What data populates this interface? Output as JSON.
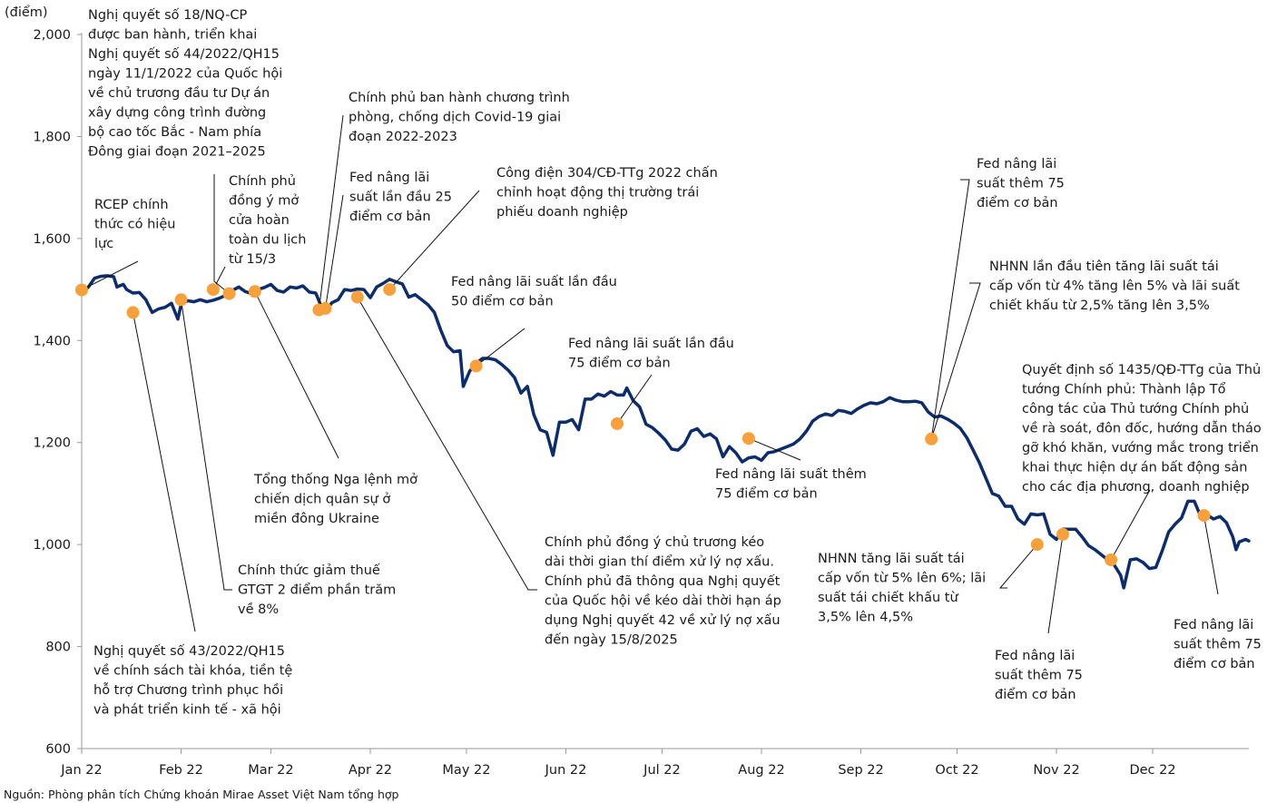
{
  "chart_data": {
    "type": "line",
    "unit_label": "(điểm)",
    "ylim": [
      600,
      2000
    ],
    "y_ticks": [
      600,
      800,
      1000,
      1200,
      1400,
      1600,
      1800,
      2000
    ],
    "y_tick_labels": [
      "600",
      "800",
      "1,000",
      "1,200",
      "1,400",
      "1,600",
      "1,800",
      "2,000"
    ],
    "x_range_days": [
      0,
      364
    ],
    "x_ticks": [
      {
        "day": 0,
        "label": "Jan 22"
      },
      {
        "day": 31,
        "label": "Feb 22"
      },
      {
        "day": 59,
        "label": "Mar 22"
      },
      {
        "day": 90,
        "label": "Apr 22"
      },
      {
        "day": 120,
        "label": "May 22"
      },
      {
        "day": 151,
        "label": "Jun 22"
      },
      {
        "day": 181,
        "label": "Jul 22"
      },
      {
        "day": 212,
        "label": "Aug 22"
      },
      {
        "day": 243,
        "label": "Sep 22"
      },
      {
        "day": 273,
        "label": "Oct 22"
      },
      {
        "day": 304,
        "label": "Nov 22"
      },
      {
        "day": 334,
        "label": "Dec 22"
      }
    ],
    "series": [
      {
        "color": "#0c2d6b",
        "points": [
          [
            0,
            1499
          ],
          [
            2,
            1504
          ],
          [
            4,
            1522
          ],
          [
            6,
            1526
          ],
          [
            8,
            1527
          ],
          [
            10,
            1525
          ],
          [
            11,
            1505
          ],
          [
            13,
            1510
          ],
          [
            14,
            1500
          ],
          [
            16,
            1493
          ],
          [
            18,
            1494
          ],
          [
            20,
            1480
          ],
          [
            22,
            1455
          ],
          [
            24,
            1462
          ],
          [
            26,
            1465
          ],
          [
            28,
            1473
          ],
          [
            30,
            1442
          ],
          [
            31,
            1470
          ],
          [
            33,
            1478
          ],
          [
            35,
            1476
          ],
          [
            37,
            1480
          ],
          [
            39,
            1476
          ],
          [
            41,
            1479
          ],
          [
            43,
            1483
          ],
          [
            45,
            1489
          ],
          [
            47,
            1498
          ],
          [
            49,
            1505
          ],
          [
            51,
            1496
          ],
          [
            53,
            1492
          ],
          [
            55,
            1500
          ],
          [
            57,
            1504
          ],
          [
            59,
            1510
          ],
          [
            61,
            1498
          ],
          [
            63,
            1495
          ],
          [
            65,
            1505
          ],
          [
            67,
            1503
          ],
          [
            69,
            1507
          ],
          [
            71,
            1495
          ],
          [
            73,
            1493
          ],
          [
            75,
            1462
          ],
          [
            77,
            1465
          ],
          [
            78,
            1474
          ],
          [
            80,
            1480
          ],
          [
            82,
            1500
          ],
          [
            84,
            1498
          ],
          [
            86,
            1501
          ],
          [
            88,
            1500
          ],
          [
            90,
            1484
          ],
          [
            92,
            1505
          ],
          [
            94,
            1512
          ],
          [
            96,
            1520
          ],
          [
            98,
            1515
          ],
          [
            100,
            1511
          ],
          [
            102,
            1485
          ],
          [
            104,
            1490
          ],
          [
            106,
            1480
          ],
          [
            108,
            1470
          ],
          [
            110,
            1455
          ],
          [
            112,
            1420
          ],
          [
            114,
            1390
          ],
          [
            116,
            1378
          ],
          [
            118,
            1380
          ],
          [
            119,
            1310
          ],
          [
            121,
            1340
          ],
          [
            123,
            1355
          ],
          [
            125,
            1365
          ],
          [
            127,
            1365
          ],
          [
            129,
            1362
          ],
          [
            131,
            1353
          ],
          [
            133,
            1342
          ],
          [
            135,
            1327
          ],
          [
            137,
            1297
          ],
          [
            139,
            1310
          ],
          [
            141,
            1255
          ],
          [
            143,
            1225
          ],
          [
            145,
            1220
          ],
          [
            147,
            1175
          ],
          [
            149,
            1240
          ],
          [
            151,
            1240
          ],
          [
            153,
            1245
          ],
          [
            155,
            1225
          ],
          [
            157,
            1285
          ],
          [
            159,
            1285
          ],
          [
            161,
            1295
          ],
          [
            163,
            1291
          ],
          [
            165,
            1300
          ],
          [
            167,
            1293
          ],
          [
            169,
            1293
          ],
          [
            170,
            1307
          ],
          [
            172,
            1282
          ],
          [
            174,
            1270
          ],
          [
            176,
            1236
          ],
          [
            178,
            1229
          ],
          [
            180,
            1218
          ],
          [
            182,
            1205
          ],
          [
            184,
            1187
          ],
          [
            186,
            1185
          ],
          [
            188,
            1197
          ],
          [
            190,
            1222
          ],
          [
            192,
            1227
          ],
          [
            194,
            1212
          ],
          [
            196,
            1217
          ],
          [
            198,
            1207
          ],
          [
            200,
            1172
          ],
          [
            202,
            1192
          ],
          [
            204,
            1180
          ],
          [
            206,
            1162
          ],
          [
            208,
            1170
          ],
          [
            210,
            1172
          ],
          [
            212,
            1165
          ],
          [
            214,
            1180
          ],
          [
            216,
            1182
          ],
          [
            218,
            1187
          ],
          [
            220,
            1192
          ],
          [
            222,
            1197
          ],
          [
            224,
            1207
          ],
          [
            226,
            1222
          ],
          [
            228,
            1242
          ],
          [
            230,
            1251
          ],
          [
            232,
            1256
          ],
          [
            234,
            1253
          ],
          [
            236,
            1263
          ],
          [
            238,
            1261
          ],
          [
            240,
            1257
          ],
          [
            242,
            1266
          ],
          [
            244,
            1273
          ],
          [
            246,
            1278
          ],
          [
            248,
            1276
          ],
          [
            250,
            1280
          ],
          [
            252,
            1288
          ],
          [
            254,
            1283
          ],
          [
            256,
            1280
          ],
          [
            258,
            1280
          ],
          [
            260,
            1281
          ],
          [
            262,
            1278
          ],
          [
            264,
            1260
          ],
          [
            266,
            1250
          ],
          [
            268,
            1252
          ],
          [
            270,
            1246
          ],
          [
            272,
            1238
          ],
          [
            274,
            1228
          ],
          [
            276,
            1210
          ],
          [
            278,
            1185
          ],
          [
            280,
            1160
          ],
          [
            282,
            1130
          ],
          [
            284,
            1100
          ],
          [
            286,
            1095
          ],
          [
            288,
            1075
          ],
          [
            290,
            1075
          ],
          [
            292,
            1050
          ],
          [
            294,
            1040
          ],
          [
            296,
            1060
          ],
          [
            298,
            1058
          ],
          [
            300,
            1060
          ],
          [
            302,
            1020
          ],
          [
            304,
            1010
          ],
          [
            306,
            1030
          ],
          [
            308,
            1030
          ],
          [
            310,
            1030
          ],
          [
            312,
            1015
          ],
          [
            314,
            998
          ],
          [
            316,
            990
          ],
          [
            318,
            980
          ],
          [
            320,
            970
          ],
          [
            322,
            960
          ],
          [
            324,
            940
          ],
          [
            325,
            915
          ],
          [
            327,
            970
          ],
          [
            329,
            972
          ],
          [
            331,
            965
          ],
          [
            333,
            953
          ],
          [
            335,
            955
          ],
          [
            337,
            988
          ],
          [
            339,
            1025
          ],
          [
            341,
            1040
          ],
          [
            343,
            1052
          ],
          [
            345,
            1085
          ],
          [
            347,
            1085
          ],
          [
            349,
            1055
          ],
          [
            351,
            1058
          ],
          [
            353,
            1050
          ],
          [
            355,
            1055
          ],
          [
            357,
            1043
          ],
          [
            359,
            1015
          ],
          [
            360,
            990
          ],
          [
            361,
            1005
          ],
          [
            363,
            1010
          ],
          [
            364,
            1007
          ]
        ]
      }
    ],
    "markers": [
      {
        "day": 0,
        "value": 1499
      },
      {
        "day": 16,
        "value": 1455
      },
      {
        "day": 31,
        "value": 1480
      },
      {
        "day": 41,
        "value": 1500
      },
      {
        "day": 46,
        "value": 1492
      },
      {
        "day": 54,
        "value": 1496
      },
      {
        "day": 74,
        "value": 1460
      },
      {
        "day": 76,
        "value": 1463
      },
      {
        "day": 86,
        "value": 1485
      },
      {
        "day": 96,
        "value": 1500
      },
      {
        "day": 123,
        "value": 1350
      },
      {
        "day": 167,
        "value": 1237
      },
      {
        "day": 208,
        "value": 1208
      },
      {
        "day": 265,
        "value": 1207
      },
      {
        "day": 298,
        "value": 1000
      },
      {
        "day": 306,
        "value": 1020
      },
      {
        "day": 321,
        "value": 970
      },
      {
        "day": 350,
        "value": 1057
      }
    ],
    "marker_color": "#f7a03c",
    "annotations": [
      {
        "lines": [
          "Nghị quyết số 18/NQ-CP",
          "được ban hành, triển khai",
          "Nghị quyết số 44/2022/QH15",
          "ngày 11/1/2022 của Quốc hội",
          "về chủ trương đầu tư Dự án",
          "xây dựng công trình đường",
          "bộ cao tốc Bắc - Nam phía",
          "Đông giai đoạn 2021–2025"
        ]
      },
      {
        "lines": [
          "RCEP chính",
          "thức có hiệu",
          "lực"
        ]
      },
      {
        "lines": [
          "Chính phủ",
          "đồng ý mở",
          "cửa hoàn",
          "toàn du lịch",
          "từ 15/3"
        ]
      },
      {
        "lines": [
          "Chính phủ ban hành chương trình",
          "phòng, chống dịch Covid-19 giai",
          "đoạn 2022-2023"
        ]
      },
      {
        "lines": [
          "Fed nâng lãi",
          "suất lần đầu 25",
          "điểm cơ bản"
        ]
      },
      {
        "lines": [
          "Công điện 304/CĐ-TTg 2022 chấn",
          "chỉnh hoạt động thị trường trái",
          "phiếu doanh nghiệp"
        ]
      },
      {
        "lines": [
          "Fed nâng lãi suất lần đầu",
          "50 điểm cơ bản"
        ]
      },
      {
        "lines": [
          "Fed nâng lãi suất lần đầu",
          "75 điểm cơ bản"
        ]
      },
      {
        "lines": [
          "Fed nâng lãi",
          "suất thêm 75",
          "điểm cơ bản"
        ]
      },
      {
        "lines": [
          "NHNN lần đầu tiên tăng lãi suất tái",
          "cấp vốn từ 4% tăng lên 5% và lãi suất",
          "chiết khấu từ 2,5% tăng lên 3,5%"
        ]
      },
      {
        "lines": [
          "Quyết định số 1435/QĐ-TTg của Thủ",
          "tướng Chính phủ: Thành lập Tổ",
          "công tác của Thủ tướng Chính phủ",
          "về rà soát, đôn đốc, hướng dẫn tháo",
          "gỡ khó khăn, vướng mắc trong triển",
          "khai thực hiện dự án bất động sản",
          "cho các địa phương, doanh nghiệp"
        ]
      },
      {
        "lines": [
          "Tổng thống Nga lệnh mở",
          "chiến dịch quân sự ở",
          "miền đông Ukraine"
        ]
      },
      {
        "lines": [
          "Fed nâng lãi suất thêm",
          "75 điểm cơ bản"
        ]
      },
      {
        "lines": [
          "Chính thức giảm thuế",
          "GTGT 2 điểm phần trăm",
          "về 8%"
        ]
      },
      {
        "lines": [
          "Chính phủ đồng ý chủ trương kéo",
          "dài thời gian thí điểm xử lý nợ xấu.",
          "Chính phủ đã thông qua Nghị quyết",
          "của Quốc hội về kéo dài thời hạn áp",
          "dụng Nghị quyết 42 về xử lý nợ xấu",
          "đến ngày 15/8/2025"
        ]
      },
      {
        "lines": [
          "NHNN tăng lãi suất tái",
          "cấp vốn từ 5% lên 6%; lãi",
          "suất tái chiết khấu từ",
          "3,5% lên 4,5%"
        ]
      },
      {
        "lines": [
          "Nghị quyết số 43/2022/QH15",
          "về chính sách tài khóa, tiền tệ",
          "hỗ trợ Chương trình phục hồi",
          "và phát triển kinh tế - xã hội"
        ]
      },
      {
        "lines": [
          "Fed nâng lãi",
          "suất thêm 75",
          "điểm cơ bản"
        ]
      },
      {
        "lines": [
          "Fed nâng lãi",
          "suất thêm 75",
          "điểm cơ bản"
        ]
      }
    ],
    "source": "Nguồn: Phòng phân tích Chứng khoán Mirae Asset Việt Nam tổng hợp"
  }
}
